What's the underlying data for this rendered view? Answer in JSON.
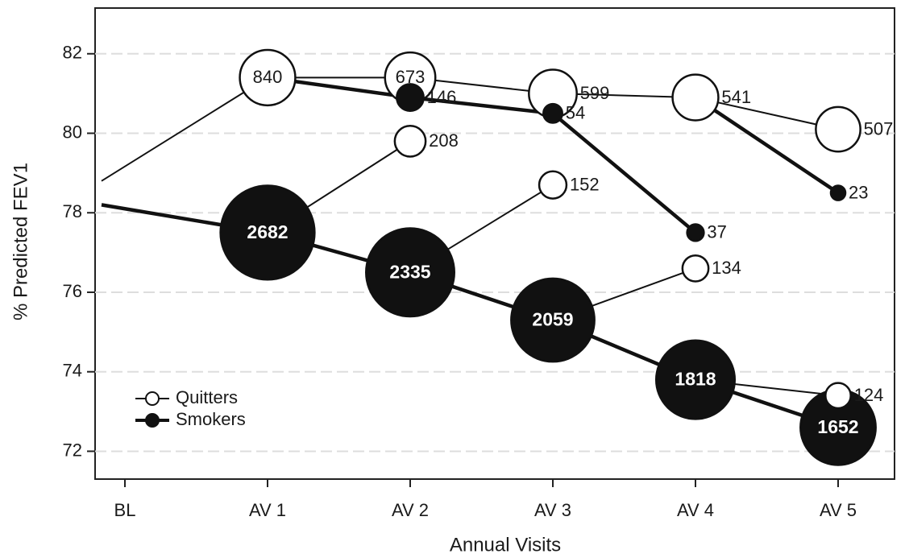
{
  "chart_data": {
    "type": "bubble-line",
    "x_label": "Annual Visits",
    "y_label": "% Predicted FEV1",
    "categories": [
      "BL",
      "AV 1",
      "AV 2",
      "AV 3",
      "AV 4",
      "AV 5"
    ],
    "ylim": [
      71.3,
      83.15
    ],
    "yticks": [
      72,
      74,
      76,
      78,
      80,
      82
    ],
    "legend": [
      {
        "label": "Quitters",
        "color": "#ffffff"
      },
      {
        "label": "Smokers",
        "color": "#111111"
      }
    ],
    "series": [
      {
        "color": "#ffffff",
        "values": [
          78.8,
          81.4,
          81.4,
          81.0,
          80.9,
          80.1
        ],
        "sizes": [
          null,
          840,
          673,
          599,
          541,
          507
        ]
      },
      {
        "color": "#111111",
        "values": [
          null,
          81.4,
          80.9,
          80.5,
          77.5,
          null
        ],
        "sizes": [
          null,
          null,
          146,
          54,
          37,
          null
        ]
      },
      {
        "color": "#111111",
        "values": [
          null,
          null,
          null,
          null,
          80.9,
          78.5
        ],
        "sizes": [
          null,
          null,
          null,
          null,
          null,
          23
        ]
      },
      {
        "color": "#111111",
        "values": [
          78.2,
          77.5,
          76.5,
          75.3,
          73.8,
          72.6
        ],
        "sizes": [
          null,
          2682,
          2335,
          2059,
          1818,
          1652
        ]
      },
      {
        "color": "#ffffff",
        "values": [
          null,
          77.5,
          79.8,
          null,
          null,
          null
        ],
        "sizes": [
          null,
          null,
          208,
          null,
          null,
          null
        ]
      },
      {
        "color": "#ffffff",
        "values": [
          null,
          null,
          76.5,
          78.7,
          null,
          null
        ],
        "sizes": [
          null,
          null,
          null,
          152,
          null,
          null
        ]
      },
      {
        "color": "#ffffff",
        "values": [
          null,
          null,
          null,
          75.3,
          76.6,
          null
        ],
        "sizes": [
          null,
          null,
          null,
          null,
          134,
          null
        ]
      },
      {
        "color": "#ffffff",
        "values": [
          null,
          null,
          null,
          null,
          73.8,
          73.4
        ],
        "sizes": [
          null,
          null,
          null,
          null,
          null,
          124
        ]
      }
    ]
  }
}
